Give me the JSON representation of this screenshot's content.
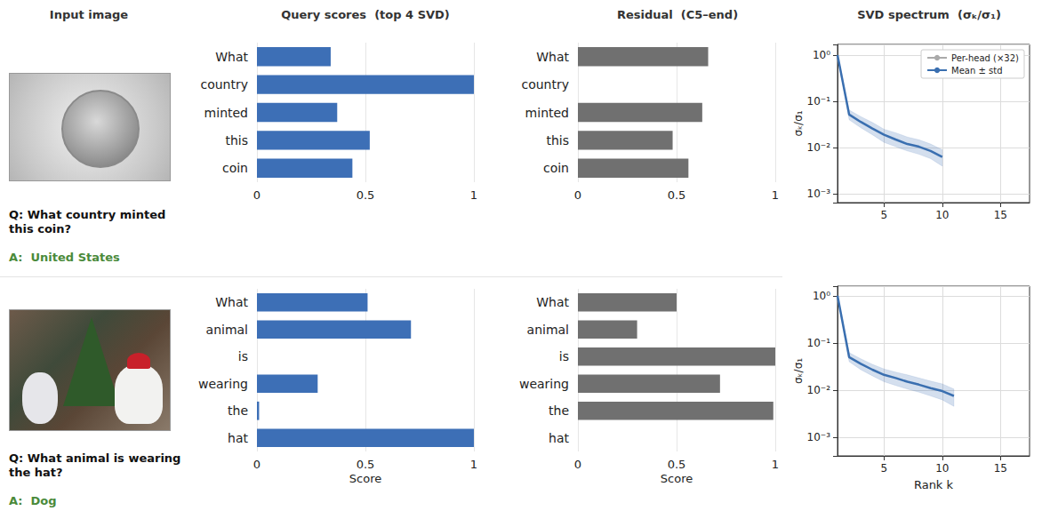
{
  "headers": [
    "Input image",
    "Query scores  (top 4 SVD)",
    "Residual  (C5–end)",
    "SVD spectrum  (σₖ/σ₁)"
  ],
  "rows": [
    {
      "question": "Q: What country minted this coin?",
      "answer": "A:  United States"
    },
    {
      "question": "Q: What animal is wearing the hat?",
      "answer": "A:  Dog"
    }
  ],
  "chart_data": [
    {
      "type": "bar",
      "orientation": "horizontal",
      "categories": [
        "What",
        "country",
        "minted",
        "this",
        "coin"
      ],
      "values": [
        0.34,
        1.0,
        0.37,
        0.52,
        0.44
      ],
      "color": "#3d6fb6",
      "xlim": [
        0,
        1
      ],
      "xticks": [
        0,
        0.5,
        1
      ],
      "grid": true
    },
    {
      "type": "bar",
      "orientation": "horizontal",
      "categories": [
        "What",
        "country",
        "minted",
        "this",
        "coin"
      ],
      "values": [
        0.66,
        0,
        0.63,
        0.48,
        0.56
      ],
      "color": "#707070",
      "xlim": [
        0,
        1
      ],
      "xticks": [
        0,
        0.5,
        1
      ],
      "grid": true
    },
    {
      "type": "line",
      "log": "y",
      "x": [
        1,
        2,
        3,
        4,
        5,
        6,
        7,
        8,
        9,
        10
      ],
      "series": [
        {
          "name": "Per-head (×32)",
          "color": "#aaaaaa"
        },
        {
          "name": "Mean ± std",
          "color": "#3a6fb0",
          "values": [
            1,
            0.052,
            0.036,
            0.026,
            0.019,
            0.015,
            0.012,
            0.0105,
            0.0085,
            0.0063
          ],
          "std_low": [
            1,
            0.04,
            0.027,
            0.019,
            0.013,
            0.0105,
            0.0085,
            0.0072,
            0.0058,
            0.004
          ],
          "std_high": [
            1,
            0.065,
            0.047,
            0.035,
            0.025,
            0.021,
            0.017,
            0.0148,
            0.012,
            0.009
          ]
        }
      ],
      "xlim": [
        1,
        17.5
      ],
      "xticks": [
        5,
        10,
        15
      ],
      "ylim": [
        0.00065,
        1.7
      ],
      "yticks": [
        {
          "value": 0.001,
          "label": "10⁻³"
        },
        {
          "value": 0.01,
          "label": "10⁻²"
        },
        {
          "value": 0.1,
          "label": "10⁻¹"
        },
        {
          "value": 1,
          "label": "10⁰"
        }
      ],
      "ylabel": "σₖ/σ₁",
      "grid": true,
      "legend": "upper right"
    },
    {
      "type": "bar",
      "orientation": "horizontal",
      "categories": [
        "What",
        "animal",
        "is",
        "wearing",
        "the",
        "hat"
      ],
      "values": [
        0.51,
        0.71,
        0,
        0.28,
        0.01,
        1.0
      ],
      "color": "#3d6fb6",
      "xlim": [
        0,
        1
      ],
      "xticks": [
        0,
        0.5,
        1
      ],
      "xlabel": "Score",
      "grid": true
    },
    {
      "type": "bar",
      "orientation": "horizontal",
      "categories": [
        "What",
        "animal",
        "is",
        "wearing",
        "the",
        "hat"
      ],
      "values": [
        0.5,
        0.3,
        1.0,
        0.72,
        0.99,
        0
      ],
      "color": "#707070",
      "xlim": [
        0,
        1
      ],
      "xticks": [
        0,
        0.5,
        1
      ],
      "xlabel": "Score",
      "grid": true
    },
    {
      "type": "line",
      "log": "y",
      "x": [
        1,
        2,
        3,
        4,
        5,
        6,
        7,
        8,
        9,
        10,
        11
      ],
      "series": [
        {
          "name": "Per-head (×32)",
          "color": "#aaaaaa"
        },
        {
          "name": "Mean ± std",
          "color": "#3a6fb0",
          "values": [
            1,
            0.05,
            0.036,
            0.027,
            0.021,
            0.018,
            0.015,
            0.013,
            0.011,
            0.0095,
            0.0075
          ],
          "std_low": [
            1,
            0.04,
            0.027,
            0.02,
            0.015,
            0.0125,
            0.0105,
            0.009,
            0.0075,
            0.0062,
            0.0045
          ],
          "std_high": [
            1,
            0.062,
            0.046,
            0.035,
            0.028,
            0.024,
            0.021,
            0.018,
            0.0155,
            0.0135,
            0.0105
          ]
        }
      ],
      "xlim": [
        1,
        17.5
      ],
      "xticks": [
        5,
        10,
        15
      ],
      "ylim": [
        0.0004,
        1.6
      ],
      "yticks": [
        {
          "value": 0.001,
          "label": "10⁻³"
        },
        {
          "value": 0.01,
          "label": "10⁻²"
        },
        {
          "value": 0.1,
          "label": "10⁻¹"
        },
        {
          "value": 1,
          "label": "10⁰"
        }
      ],
      "xlabel": "Rank k",
      "ylabel": "σₖ/σ₁",
      "grid": true
    }
  ]
}
